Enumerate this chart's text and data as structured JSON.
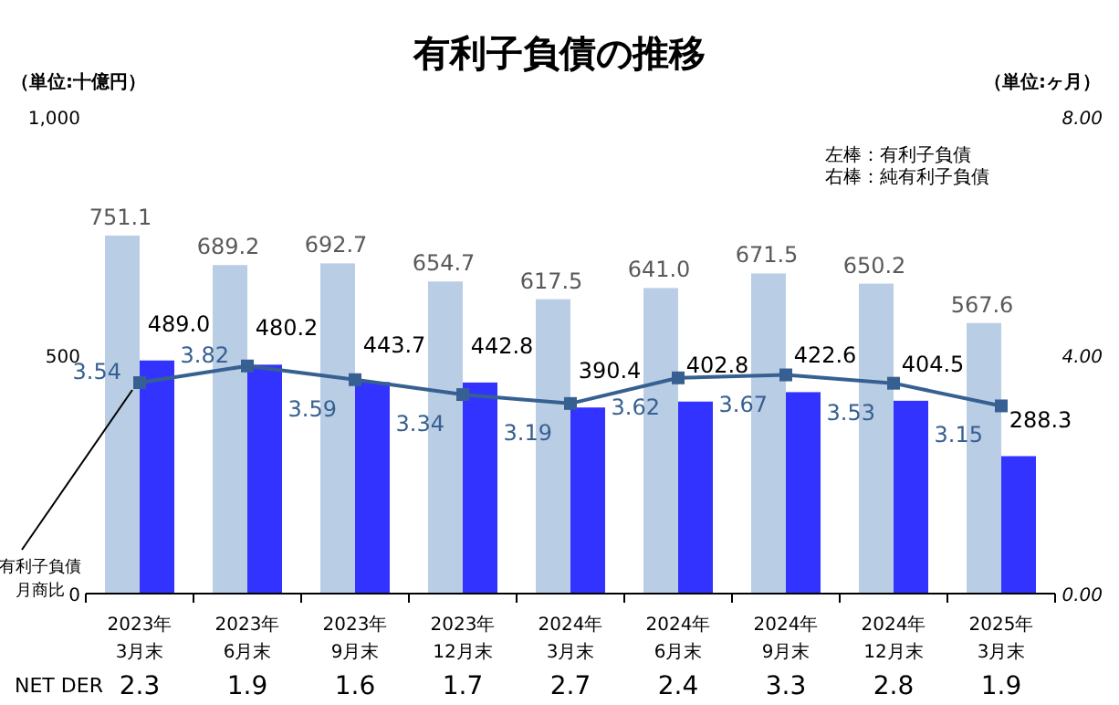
{
  "chart_data": {
    "type": "bar",
    "title": "有利子負債の推移",
    "ylabel": "（単位:十億円）",
    "y2label": "（単位:ヶ月）",
    "categories": [
      "2023年\n3月末",
      "2023年\n6月末",
      "2023年\n9月末",
      "2023年\n12月末",
      "2024年\n3月末",
      "2024年\n6月末",
      "2024年\n9月末",
      "2024年\n12月末",
      "2025年\n3月末"
    ],
    "series": [
      {
        "color": "#b9cde5",
        "values": [
          751.1,
          689.2,
          692.7,
          654.7,
          617.5,
          641.0,
          671.5,
          650.2,
          567.6
        ],
        "value_labels": [
          "751.1",
          "689.2",
          "692.7",
          "654.7",
          "617.5",
          "641.0",
          "671.5",
          "650.2",
          "567.6"
        ]
      },
      {
        "color": "#3333ff",
        "values": [
          489.0,
          480.2,
          443.7,
          442.8,
          390.4,
          402.8,
          422.6,
          404.5,
          288.3
        ],
        "value_labels": [
          "489.0",
          "480.2",
          "443.7",
          "442.8",
          "390.4",
          "402.8",
          "422.6",
          "404.5",
          "288.3"
        ]
      },
      {
        "type": "line",
        "axis": "y2",
        "name": "有利子負債月商比",
        "color": "#376092",
        "marker": "square",
        "values": [
          3.54,
          3.82,
          3.59,
          3.34,
          3.19,
          3.62,
          3.67,
          3.53,
          3.15
        ]
      }
    ],
    "ylim": [
      0,
      1000
    ],
    "yticks": [
      0,
      500,
      {
        "value": 1000,
        "label": "1,000"
      }
    ],
    "y2lim": [
      0,
      8
    ],
    "y2ticks": [
      {
        "value": 0,
        "label": "0.00"
      },
      {
        "value": 4,
        "label": "4.00"
      },
      {
        "value": 8,
        "label": "8.00"
      }
    ],
    "data_labels": true,
    "grid": false,
    "annotations": [
      "左棒：有利子負債",
      "右棒：純有利子負債",
      "NET DER",
      "2.3",
      "1.9",
      "1.6",
      "1.7",
      "2.7",
      "2.4",
      "3.3",
      "2.8",
      "1.9"
    ]
  }
}
